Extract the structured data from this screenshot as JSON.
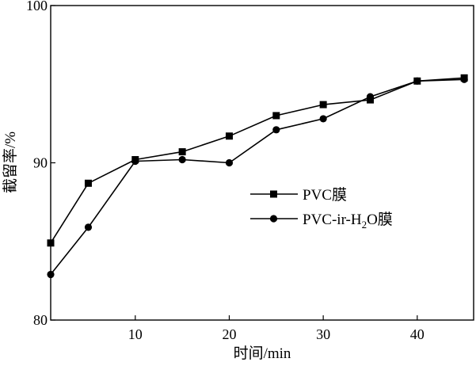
{
  "chart_data": {
    "type": "line",
    "title": "",
    "xlabel": "时间/min",
    "ylabel": "截留率/%",
    "xlim": [
      1,
      46
    ],
    "ylim": [
      80,
      100
    ],
    "xticks": [
      10,
      20,
      30,
      40
    ],
    "yticks": [
      80,
      90,
      100
    ],
    "legend_position": "center-right",
    "grid": false,
    "series": [
      {
        "name": "PVC膜",
        "marker": "square",
        "x": [
          1,
          5,
          10,
          15,
          20,
          25,
          30,
          35,
          40,
          45
        ],
        "y": [
          84.9,
          88.7,
          90.2,
          90.7,
          91.7,
          93.0,
          93.7,
          94.0,
          95.2,
          95.4
        ]
      },
      {
        "name": "PVC-ir-H2O膜",
        "marker": "circle",
        "x": [
          1,
          5,
          10,
          15,
          20,
          25,
          30,
          35,
          40,
          45
        ],
        "y": [
          82.9,
          85.9,
          90.1,
          90.2,
          90.0,
          92.1,
          92.8,
          94.2,
          95.2,
          95.3
        ]
      }
    ]
  }
}
